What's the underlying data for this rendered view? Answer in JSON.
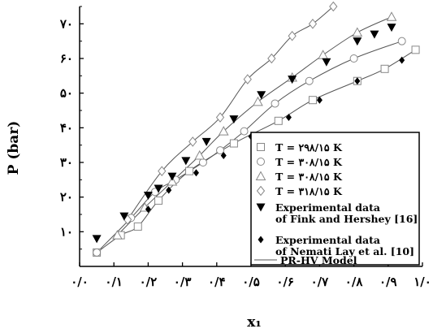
{
  "chart_data": {
    "type": "scatter",
    "xlabel": "x₁",
    "ylabel": "P (bar)",
    "xlim": [
      0,
      1
    ],
    "ylim": [
      0,
      75
    ],
    "x_ticks": [
      {
        "v": 0.0,
        "label": "۰/۰"
      },
      {
        "v": 0.1,
        "label": "۰/۱"
      },
      {
        "v": 0.2,
        "label": "۰/۲"
      },
      {
        "v": 0.3,
        "label": "۰/۳"
      },
      {
        "v": 0.4,
        "label": "۰/۴"
      },
      {
        "v": 0.5,
        "label": "۰/۵"
      },
      {
        "v": 0.6,
        "label": "۰/۶"
      },
      {
        "v": 0.7,
        "label": "۰/۷"
      },
      {
        "v": 0.8,
        "label": "۰/۸"
      },
      {
        "v": 0.9,
        "label": "۰/۹"
      },
      {
        "v": 1.0,
        "label": "۱/۰"
      }
    ],
    "y_ticks": [
      {
        "v": 10,
        "label": "۱۰"
      },
      {
        "v": 20,
        "label": "۲۰"
      },
      {
        "v": 30,
        "label": "۳۰"
      },
      {
        "v": 40,
        "label": "۴۰"
      },
      {
        "v": 50,
        "label": "۵۰"
      },
      {
        "v": 60,
        "label": "۶۰"
      },
      {
        "v": 70,
        "label": "۷۰"
      }
    ],
    "legend_position": "bottom-right",
    "series": [
      {
        "name": "T = ۲۹۸/۱۵ K",
        "marker": "square-open",
        "x": [
          0.05,
          0.12,
          0.17,
          0.23,
          0.32,
          0.45,
          0.58,
          0.68,
          0.81,
          0.89,
          0.98
        ],
        "y": [
          4,
          9,
          11.5,
          19,
          27.5,
          35.5,
          42,
          48,
          53.5,
          57,
          62.5
        ]
      },
      {
        "name": "T = ۳۰۸/۱۵ K",
        "marker": "circle-open",
        "x": [
          0.05,
          0.15,
          0.22,
          0.28,
          0.36,
          0.41,
          0.48,
          0.57,
          0.67,
          0.8,
          0.94
        ],
        "y": [
          4,
          14,
          21.5,
          25,
          30,
          33.5,
          39,
          47,
          53.5,
          60,
          65
        ]
      },
      {
        "name": "T = ۳۰۸/۱۵ K",
        "marker": "triangle-open",
        "x": [
          0.11,
          0.19,
          0.27,
          0.35,
          0.42,
          0.52,
          0.62,
          0.71,
          0.81,
          0.91
        ],
        "y": [
          9,
          17,
          24.5,
          32,
          39,
          47.5,
          54.5,
          61,
          67.5,
          72
        ]
      },
      {
        "name": "T = ۳۱۸/۱۵ K",
        "marker": "diamond-open",
        "x": [
          0.14,
          0.24,
          0.33,
          0.41,
          0.49,
          0.56,
          0.62,
          0.68,
          0.74
        ],
        "y": [
          13.5,
          27.5,
          36,
          43,
          54,
          60,
          66.5,
          70,
          75
        ]
      },
      {
        "name": "Experimental data\nof Fink and Hershey [16]",
        "marker": "triangle-down-filled",
        "x": [
          0.05,
          0.13,
          0.2,
          0.23,
          0.27,
          0.31,
          0.37,
          0.45,
          0.53,
          0.62,
          0.72,
          0.81,
          0.86,
          0.91
        ],
        "y": [
          8,
          14.5,
          20.5,
          22.5,
          26,
          30.5,
          36,
          42.5,
          49.5,
          54,
          59,
          65,
          67,
          69
        ]
      },
      {
        "name": "Experimental data\nof Nemati Lay et al. [10]",
        "marker": "diamond-filled",
        "x": [
          0.2,
          0.26,
          0.34,
          0.42,
          0.5,
          0.61,
          0.7,
          0.81,
          0.94
        ],
        "y": [
          16.5,
          22,
          27,
          32,
          37.5,
          43,
          48,
          53.5,
          59.5
        ]
      },
      {
        "name": "PR-HV Model",
        "marker": "line"
      }
    ]
  }
}
